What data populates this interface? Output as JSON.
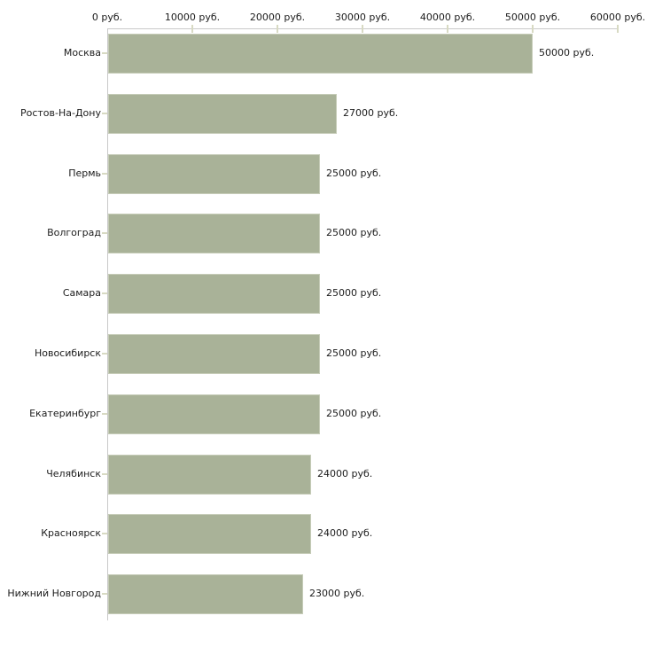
{
  "chart_data": {
    "type": "bar",
    "orientation": "horizontal",
    "title": "",
    "xlabel": "",
    "ylabel": "",
    "xlim": [
      0,
      60000
    ],
    "grid": false,
    "legend": null,
    "axis_position": "top",
    "categories": [
      "Москва",
      "Ростов-На-Дону",
      "Пермь",
      "Волгоград",
      "Самара",
      "Новосибирск",
      "Екатеринбург",
      "Челябинск",
      "Красноярск",
      "Нижний Новгород"
    ],
    "values": [
      50000,
      27000,
      25000,
      25000,
      25000,
      25000,
      25000,
      24000,
      24000,
      23000
    ],
    "value_labels": [
      "50000 руб.",
      "27000 руб.",
      "25000 руб.",
      "25000 руб.",
      "25000 руб.",
      "25000 руб.",
      "25000 руб.",
      "24000 руб.",
      "24000 руб.",
      "23000 руб."
    ],
    "x_ticks": [
      {
        "value": 0,
        "label": "0 руб."
      },
      {
        "value": 10000,
        "label": "10000 руб."
      },
      {
        "value": 20000,
        "label": "20000 руб."
      },
      {
        "value": 30000,
        "label": "30000 руб."
      },
      {
        "value": 40000,
        "label": "40000 руб."
      },
      {
        "value": 50000,
        "label": "50000 руб."
      },
      {
        "value": 60000,
        "label": "60000 руб."
      }
    ],
    "colors": {
      "bar_fill": "#a9b298",
      "bar_border": "#c6ccb8",
      "axis_line": "#c9c9c9",
      "tick_mark": "#d8dac3",
      "text": "#1c1c1c",
      "background": "#ffffff"
    }
  }
}
